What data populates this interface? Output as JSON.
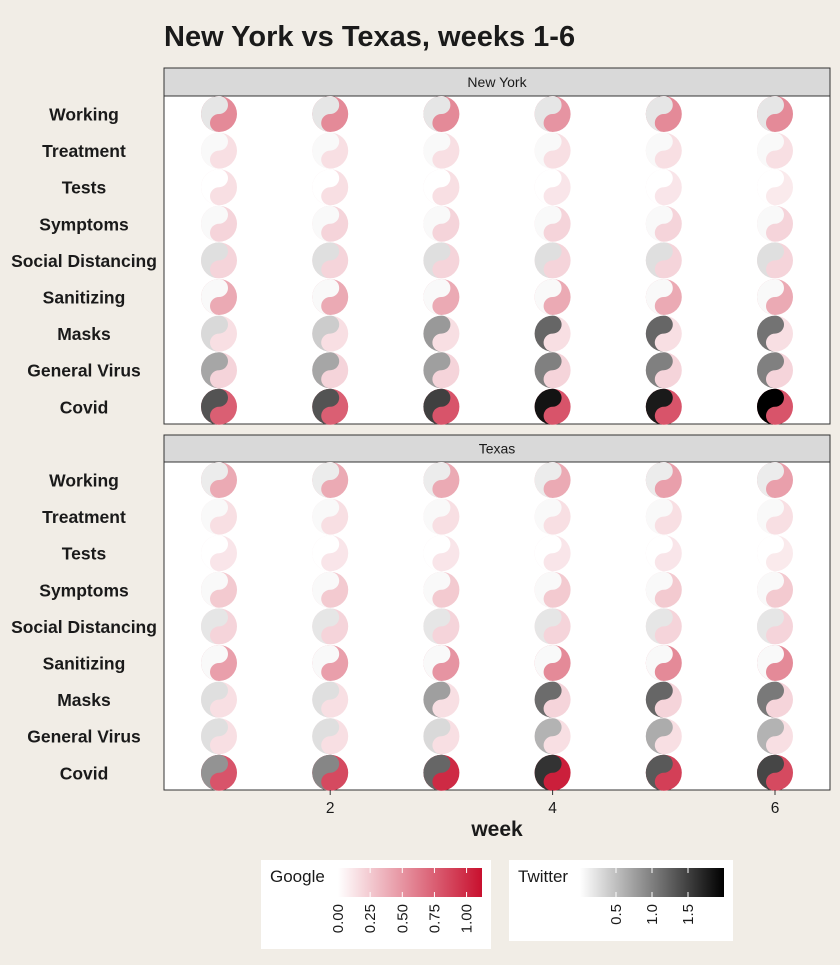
{
  "chart_data": {
    "type": "heatmap",
    "title": "New York vs Texas, weeks 1-6",
    "xlabel": "week",
    "ylabel": "",
    "x": [
      1,
      2,
      3,
      4,
      5,
      6
    ],
    "x_tick_labels": [
      "2",
      "4",
      "6"
    ],
    "x_ticks": [
      2,
      4,
      6
    ],
    "categories": [
      "Working",
      "Treatment",
      "Tests",
      "Symptoms",
      "Social Distancing",
      "Sanitizing",
      "Masks",
      "General Virus",
      "Covid"
    ],
    "marker": "yin-yang: dark half = Twitter, light half = Google",
    "facets": [
      {
        "name": "New York",
        "google": [
          [
            0.55,
            0.55,
            0.55,
            0.5,
            0.55,
            0.55
          ],
          [
            0.15,
            0.15,
            0.15,
            0.15,
            0.15,
            0.15
          ],
          [
            0.15,
            0.15,
            0.15,
            0.12,
            0.12,
            0.1
          ],
          [
            0.2,
            0.2,
            0.2,
            0.2,
            0.2,
            0.2
          ],
          [
            0.2,
            0.2,
            0.2,
            0.2,
            0.2,
            0.2
          ],
          [
            0.4,
            0.4,
            0.4,
            0.4,
            0.4,
            0.4
          ],
          [
            0.15,
            0.15,
            0.15,
            0.15,
            0.15,
            0.15
          ],
          [
            0.2,
            0.2,
            0.2,
            0.2,
            0.2,
            0.2
          ],
          [
            0.75,
            0.75,
            0.8,
            0.8,
            0.8,
            0.8
          ]
        ],
        "twitter": [
          [
            0.2,
            0.2,
            0.2,
            0.2,
            0.2,
            0.2
          ],
          [
            0.05,
            0.05,
            0.05,
            0.05,
            0.05,
            0.05
          ],
          [
            0.0,
            0.0,
            0.0,
            0.0,
            0.0,
            0.0
          ],
          [
            0.05,
            0.05,
            0.05,
            0.05,
            0.05,
            0.05
          ],
          [
            0.25,
            0.25,
            0.25,
            0.25,
            0.25,
            0.25
          ],
          [
            0.05,
            0.05,
            0.05,
            0.05,
            0.05,
            0.05
          ],
          [
            0.3,
            0.4,
            0.8,
            1.2,
            1.2,
            1.1
          ],
          [
            0.7,
            0.7,
            0.75,
            1.0,
            1.0,
            1.0
          ],
          [
            1.35,
            1.35,
            1.5,
            1.85,
            1.8,
            2.0
          ]
        ]
      },
      {
        "name": "Texas",
        "google": [
          [
            0.4,
            0.4,
            0.4,
            0.4,
            0.45,
            0.45
          ],
          [
            0.15,
            0.15,
            0.15,
            0.15,
            0.15,
            0.15
          ],
          [
            0.12,
            0.12,
            0.12,
            0.12,
            0.12,
            0.1
          ],
          [
            0.25,
            0.25,
            0.25,
            0.25,
            0.25,
            0.25
          ],
          [
            0.2,
            0.2,
            0.2,
            0.2,
            0.2,
            0.2
          ],
          [
            0.45,
            0.45,
            0.5,
            0.55,
            0.55,
            0.55
          ],
          [
            0.15,
            0.15,
            0.15,
            0.2,
            0.2,
            0.2
          ],
          [
            0.15,
            0.15,
            0.15,
            0.15,
            0.15,
            0.15
          ],
          [
            0.8,
            0.85,
            1.0,
            1.05,
            0.9,
            0.85
          ]
        ],
        "twitter": [
          [
            0.15,
            0.15,
            0.15,
            0.15,
            0.15,
            0.15
          ],
          [
            0.05,
            0.05,
            0.05,
            0.05,
            0.05,
            0.05
          ],
          [
            0.0,
            0.0,
            0.0,
            0.0,
            0.0,
            0.0
          ],
          [
            0.05,
            0.05,
            0.05,
            0.05,
            0.05,
            0.05
          ],
          [
            0.2,
            0.2,
            0.2,
            0.2,
            0.2,
            0.2
          ],
          [
            0.05,
            0.05,
            0.05,
            0.05,
            0.05,
            0.05
          ],
          [
            0.25,
            0.25,
            0.75,
            1.15,
            1.2,
            1.05
          ],
          [
            0.25,
            0.25,
            0.3,
            0.6,
            0.65,
            0.6
          ],
          [
            0.85,
            0.95,
            1.2,
            1.6,
            1.3,
            1.45
          ]
        ]
      }
    ],
    "legend": {
      "google": {
        "title": "Google",
        "ticks": [
          0.0,
          0.25,
          0.5,
          0.75,
          1.0
        ],
        "tick_labels": [
          "0.00",
          "0.25",
          "0.50",
          "0.75",
          "1.00"
        ],
        "range": [
          0,
          1.12
        ],
        "color_low": "#ffffff",
        "color_high": "#c8102e"
      },
      "twitter": {
        "title": "Twitter",
        "ticks": [
          0.5,
          1.0,
          1.5
        ],
        "tick_labels": [
          "0.5",
          "1.0",
          "1.5"
        ],
        "range": [
          0,
          2.0
        ],
        "color_low": "#ffffff",
        "color_high": "#000000"
      }
    },
    "grid": false,
    "legend_position": "bottom"
  }
}
